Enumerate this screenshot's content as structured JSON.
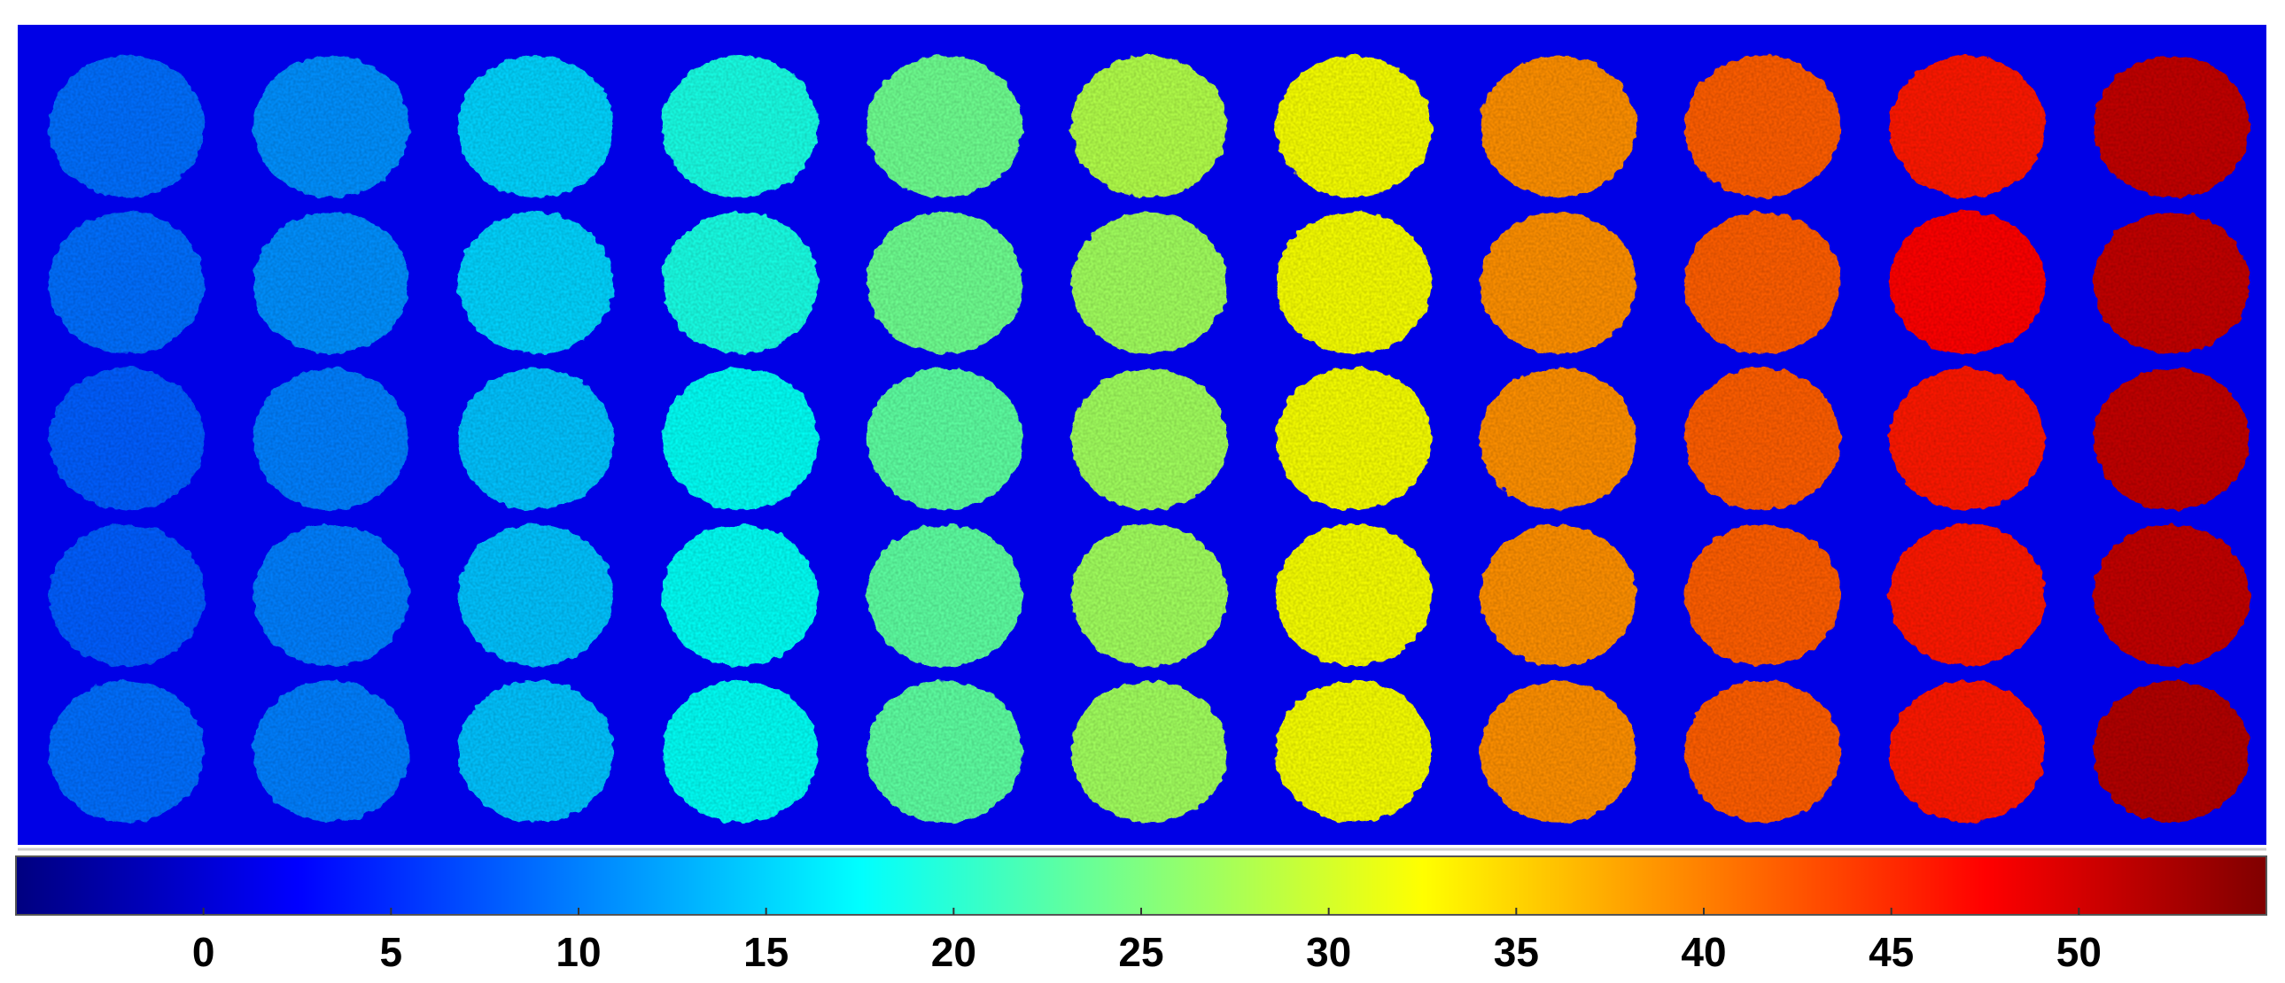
{
  "chart_data": {
    "type": "disc-heatmap",
    "colormap": "jet",
    "clim": [
      -5,
      55
    ],
    "background_value": 1,
    "values": [
      [
        9,
        11,
        15,
        19,
        24,
        28,
        32,
        39,
        42,
        46,
        51
      ],
      [
        9,
        11,
        15,
        19,
        24,
        27,
        32,
        39,
        42,
        47,
        51
      ],
      [
        8,
        10,
        14,
        18,
        23,
        27,
        32,
        39,
        42,
        46,
        51
      ],
      [
        8,
        10,
        14,
        18,
        23,
        27,
        32,
        39,
        42,
        46,
        51
      ],
      [
        9,
        10,
        14,
        18,
        23,
        27,
        32,
        39,
        42,
        46,
        52
      ]
    ],
    "cticks": [
      0,
      5,
      10,
      15,
      20,
      25,
      30,
      35,
      40,
      45,
      50
    ]
  }
}
